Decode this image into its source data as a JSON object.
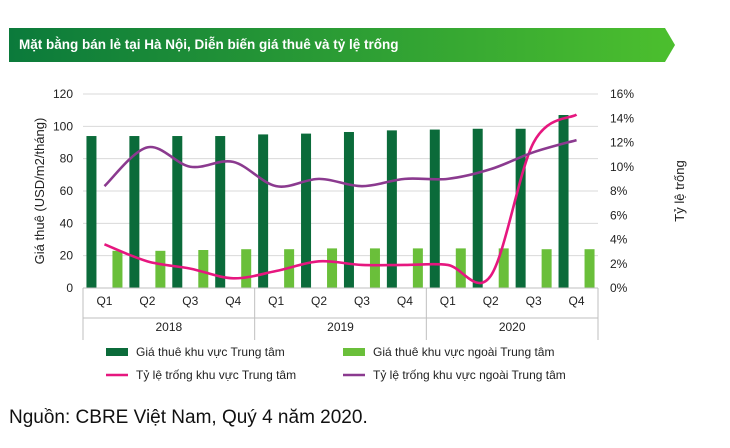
{
  "header": {
    "title": "Mặt bằng bán lẻ tại Hà Nội, Diễn biến giá thuê và tỷ lệ trống",
    "colors": {
      "start": "#0b7a3b",
      "end": "#4cbf2e"
    }
  },
  "chart_data": {
    "type": "bar",
    "categories": [
      "Q1",
      "Q2",
      "Q3",
      "Q4",
      "Q1",
      "Q2",
      "Q3",
      "Q4",
      "Q1",
      "Q2",
      "Q3",
      "Q4"
    ],
    "years": [
      "2018",
      "2019",
      "2020"
    ],
    "ylabel": "Giá thuê (USD/m2/tháng)",
    "y2label": "Tỷ lệ trống",
    "ylim": [
      0,
      120
    ],
    "yticks": [
      "0",
      "20",
      "40",
      "60",
      "80",
      "100",
      "120"
    ],
    "y2lim": [
      0,
      16
    ],
    "y2ticks": [
      "0%",
      "2%",
      "4%",
      "6%",
      "8%",
      "10%",
      "12%",
      "14%",
      "16%"
    ],
    "grid": true,
    "legend_position": "bottom",
    "series": [
      {
        "name": "Giá thuê khu vực Trung tâm",
        "kind": "bar",
        "axis": "left",
        "color": "#0b6b3a",
        "values": [
          94,
          94,
          94,
          94,
          95,
          95.5,
          96.5,
          97.5,
          98,
          98.5,
          98.5,
          107
        ]
      },
      {
        "name": "Giá thuê khu vực ngoài Trung tâm",
        "kind": "bar",
        "axis": "left",
        "color": "#6abf3a",
        "values": [
          23,
          23,
          23.5,
          24,
          24,
          24.5,
          24.5,
          24.5,
          24.5,
          24.5,
          24,
          24
        ]
      },
      {
        "name": "Tỷ lệ trống khu vực Trung tâm",
        "kind": "line",
        "axis": "right",
        "color": "#e6177f",
        "values": [
          3.6,
          2.2,
          1.6,
          0.8,
          1.4,
          2.2,
          1.9,
          1.9,
          1.9,
          1.0,
          12.0,
          14.3
        ]
      },
      {
        "name": "Tỷ lệ trống khu vực ngoài Trung tâm",
        "kind": "line",
        "axis": "right",
        "color": "#8b3a8f",
        "values": [
          8.4,
          11.6,
          10.0,
          10.4,
          8.4,
          9.0,
          8.4,
          9.0,
          9.0,
          9.8,
          11.2,
          12.2
        ]
      }
    ]
  },
  "source": "Nguồn: CBRE Việt Nam, Quý 4 năm 2020."
}
